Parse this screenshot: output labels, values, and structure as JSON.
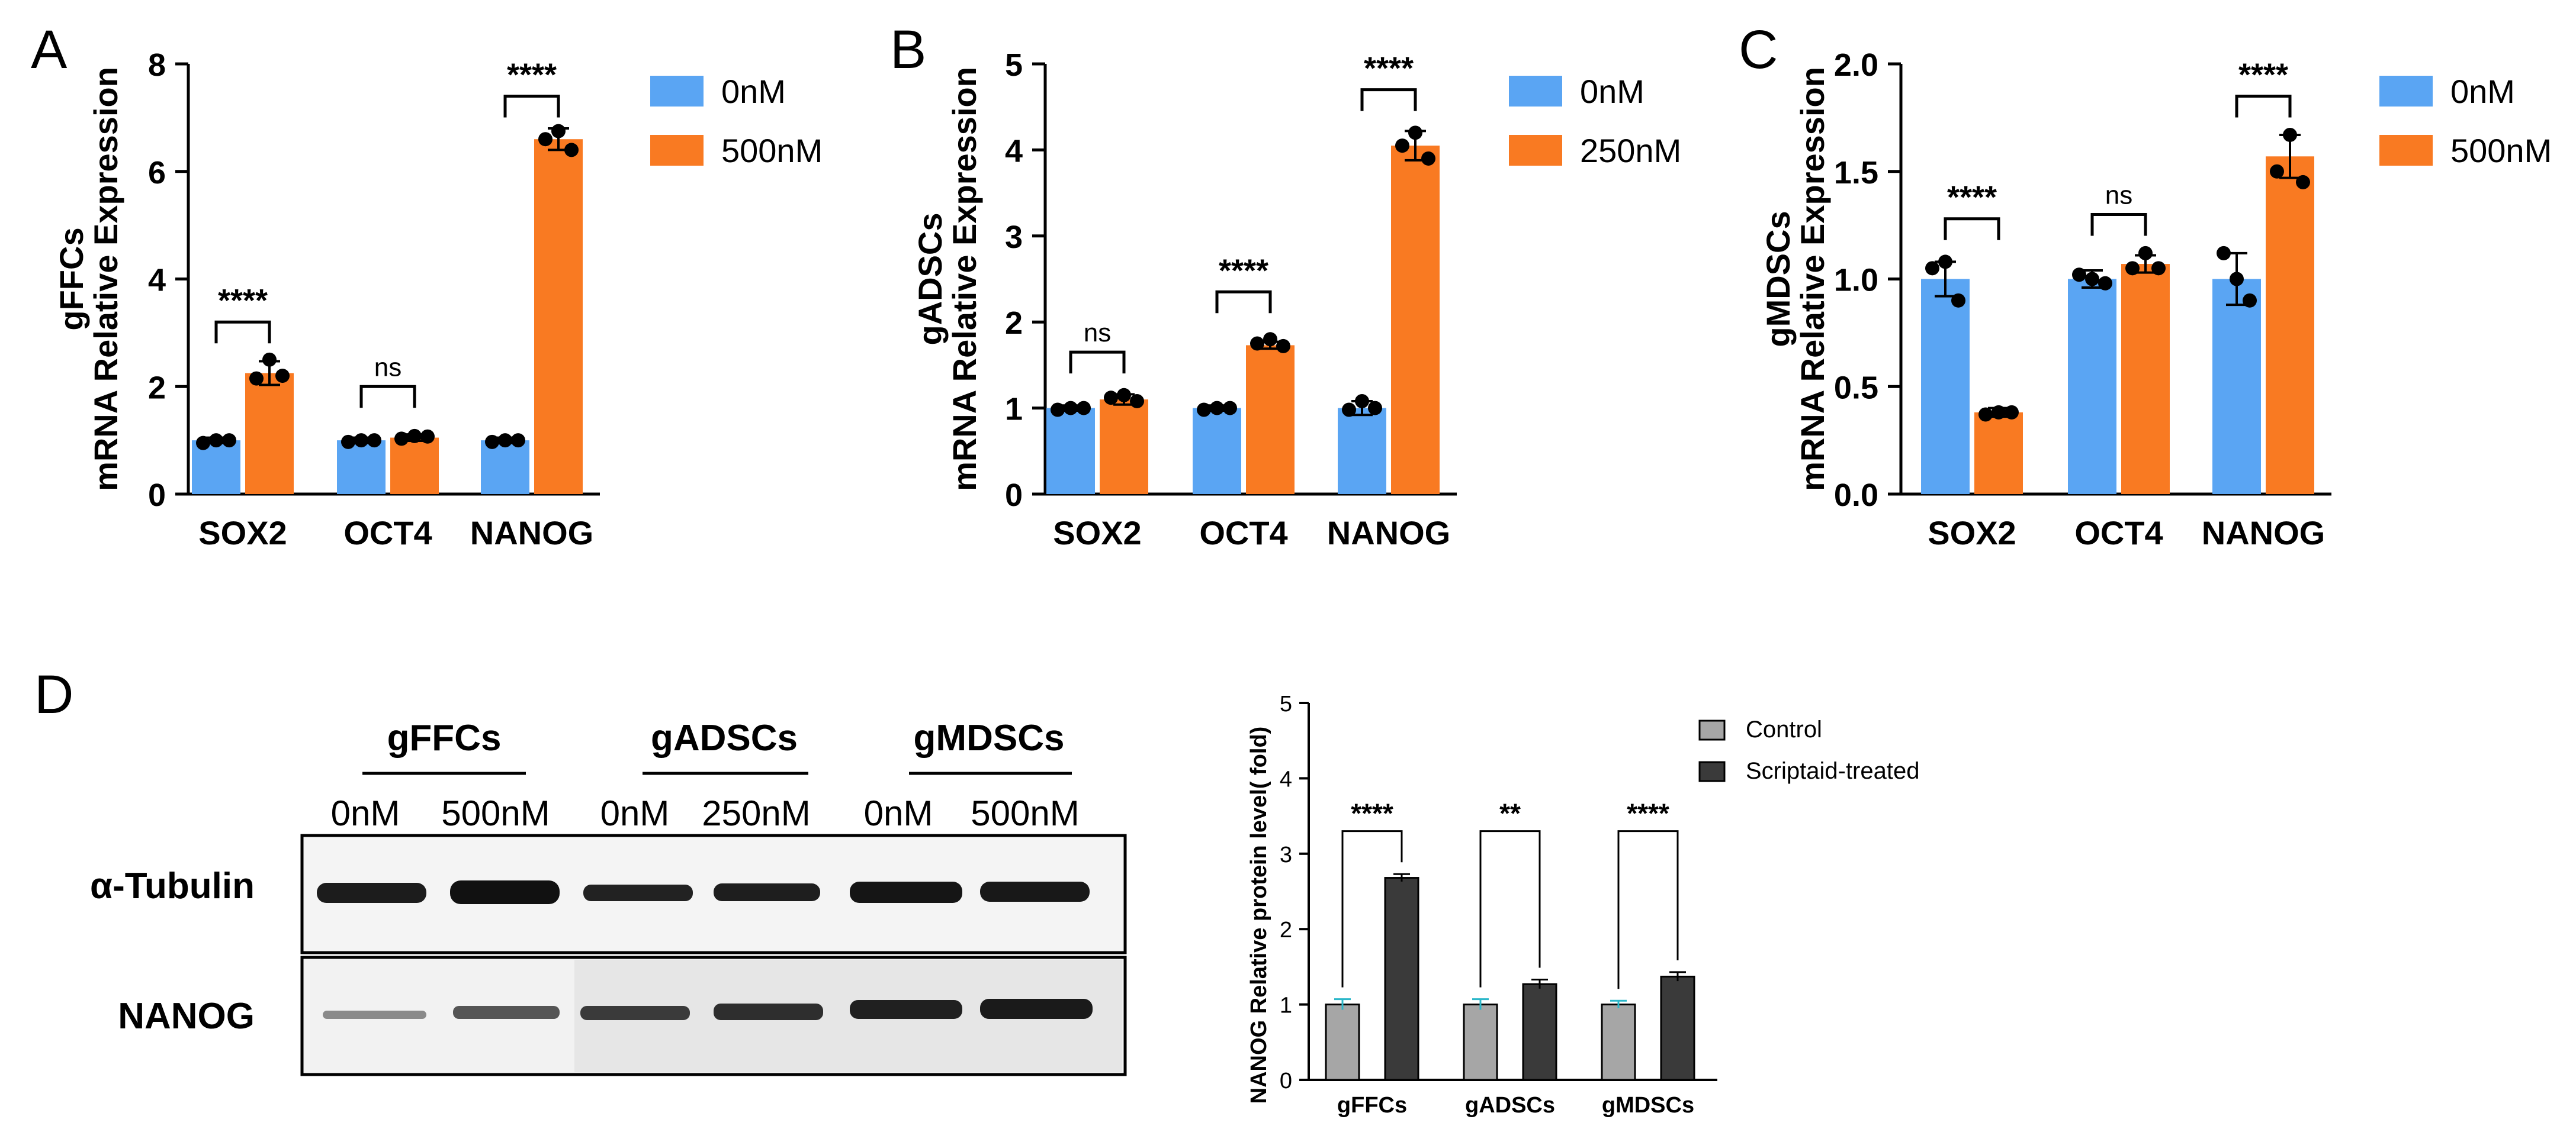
{
  "colors": {
    "blue": "#5aa5f3",
    "orange": "#f97a22",
    "grey_bar": "#a6a6a6",
    "dark_bar": "#3a3a3a",
    "err_teal": "#2cb7c9"
  },
  "panels": {
    "A": {
      "letter": "A"
    },
    "B": {
      "letter": "B"
    },
    "C": {
      "letter": "C"
    },
    "D": {
      "letter": "D"
    }
  },
  "chart_data": [
    {
      "id": "A",
      "type": "bar",
      "ylabel_line1": "gFFCs",
      "ylabel_line2": "mRNA Relative Expression",
      "categories": [
        "SOX2",
        "OCT4",
        "NANOG"
      ],
      "ylim": [
        0,
        8
      ],
      "yticks": [
        "0",
        "2",
        "4",
        "6",
        "8"
      ],
      "series": [
        {
          "name": "0nM",
          "values": [
            1.0,
            1.0,
            1.0
          ],
          "err": [
            0.05,
            0.05,
            0.05
          ],
          "points": [
            [
              0.95,
              1.0,
              1.0
            ],
            [
              0.97,
              1.0,
              1.0
            ],
            [
              0.97,
              1.0,
              1.0
            ]
          ]
        },
        {
          "name": "500nM",
          "values": [
            2.25,
            1.05,
            6.6
          ],
          "err": [
            0.22,
            0.06,
            0.2
          ],
          "points": [
            [
              2.15,
              2.5,
              2.2
            ],
            [
              1.03,
              1.08,
              1.07
            ],
            [
              6.6,
              6.75,
              6.4
            ]
          ]
        }
      ],
      "significance": [
        "****",
        "ns",
        "****"
      ],
      "sig_levels": [
        3.2,
        2.0,
        7.4
      ]
    },
    {
      "id": "B",
      "type": "bar",
      "ylabel_line1": "gADSCs",
      "ylabel_line2": "mRNA Relative Expression",
      "categories": [
        "SOX2",
        "OCT4",
        "NANOG"
      ],
      "ylim": [
        0,
        5
      ],
      "yticks": [
        "0",
        "1",
        "2",
        "3",
        "4",
        "5"
      ],
      "series": [
        {
          "name": "0nM",
          "values": [
            1.0,
            1.0,
            1.0
          ],
          "err": [
            0.03,
            0.03,
            0.08
          ],
          "points": [
            [
              0.98,
              1.0,
              1.0
            ],
            [
              0.98,
              1.0,
              1.0
            ],
            [
              0.98,
              1.08,
              1.0
            ]
          ]
        },
        {
          "name": "250nM",
          "values": [
            1.1,
            1.73,
            4.05
          ],
          "err": [
            0.06,
            0.04,
            0.17
          ],
          "points": [
            [
              1.12,
              1.15,
              1.08
            ],
            [
              1.75,
              1.8,
              1.72
            ],
            [
              4.05,
              4.2,
              3.9
            ]
          ]
        }
      ],
      "significance": [
        "ns",
        "****",
        "****"
      ],
      "sig_levels": [
        1.65,
        2.35,
        4.7
      ]
    },
    {
      "id": "C",
      "type": "bar",
      "ylabel_line1": "gMDSCs",
      "ylabel_line2": "mRNA Relative Expression",
      "categories": [
        "SOX2",
        "OCT4",
        "NANOG"
      ],
      "ylim": [
        0,
        2
      ],
      "yticks": [
        "0.0",
        "0.5",
        "1.0",
        "1.5",
        "2.0"
      ],
      "series": [
        {
          "name": "0nM",
          "values": [
            1.0,
            1.0,
            1.0
          ],
          "err": [
            0.08,
            0.04,
            0.12
          ],
          "points": [
            [
              1.05,
              1.08,
              0.9
            ],
            [
              1.02,
              1.0,
              0.98
            ],
            [
              1.12,
              1.0,
              0.9
            ]
          ]
        },
        {
          "name": "500nM",
          "values": [
            0.38,
            1.07,
            1.57
          ],
          "err": [
            0.02,
            0.04,
            0.1
          ],
          "points": [
            [
              0.37,
              0.38,
              0.38
            ],
            [
              1.05,
              1.12,
              1.05
            ],
            [
              1.5,
              1.67,
              1.45
            ]
          ]
        }
      ],
      "significance": [
        "****",
        "ns",
        "****"
      ],
      "sig_levels": [
        1.28,
        1.3,
        1.85
      ]
    },
    {
      "id": "D",
      "type": "bar",
      "ylabel": "NANOG Relative protein level( fold)",
      "categories": [
        "gFFCs",
        "gADSCs",
        "gMDSCs"
      ],
      "ylim": [
        0,
        5
      ],
      "yticks": [
        "0",
        "1",
        "2",
        "3",
        "4",
        "5"
      ],
      "series": [
        {
          "name": "Control",
          "values": [
            1.0,
            1.0,
            1.0
          ],
          "err": [
            0.07,
            0.07,
            0.05
          ]
        },
        {
          "name": "Scriptaid-treated",
          "values": [
            2.68,
            1.27,
            1.37
          ],
          "err": [
            0.05,
            0.06,
            0.06
          ]
        }
      ],
      "significance": [
        "****",
        "**",
        "****"
      ],
      "sig_levels": [
        3.3,
        3.3,
        3.3
      ]
    }
  ],
  "blot": {
    "groups": [
      "gFFCs",
      "gADSCs",
      "gMDSCs"
    ],
    "lanes": [
      "0nM",
      "500nM",
      "0nM",
      "250nM",
      "0nM",
      "500nM"
    ],
    "rows": [
      "α-Tubulin",
      "NANOG"
    ]
  }
}
